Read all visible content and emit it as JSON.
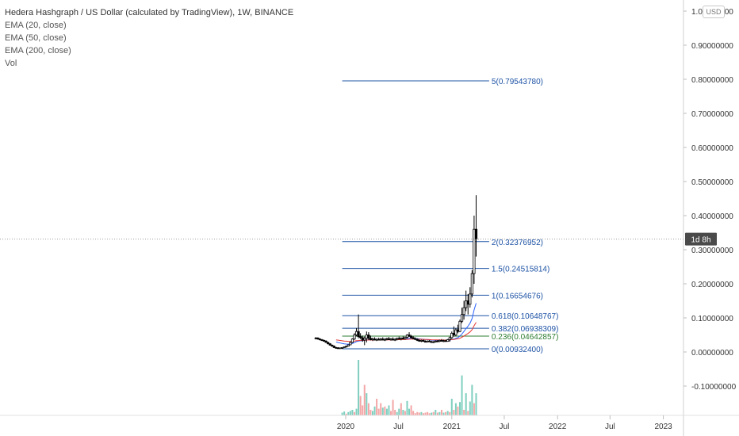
{
  "legend": {
    "title": "Hedera Hashgraph / US Dollar (calculated by TradingView), 1W, BINANCE",
    "indicators": [
      "EMA (20, close)",
      "EMA (50, close)",
      "EMA (200, close)",
      "Vol"
    ]
  },
  "currency_badge": "USD",
  "countdown_label": "1d 8h",
  "colors": {
    "fib_line": "#1e53a5",
    "fib_0236": "#2e7d32",
    "up_candle": "#000000",
    "volume_up": "#7fcfbf",
    "volume_down": "#f3a6a6",
    "axis_text": "#333333",
    "ema20": "#2962ff",
    "ema50": "#e53935",
    "ema200": "#26a69a"
  },
  "chart_data": {
    "type": "candlestick",
    "interval": "1W",
    "y_axis": {
      "ticks": [
        1.0,
        0.9,
        0.8,
        0.7,
        0.6,
        0.5,
        0.4,
        0.3,
        0.2,
        0.1,
        0.0,
        -0.1
      ],
      "tick_labels": [
        "1.00000000",
        "0.90000000",
        "0.80000000",
        "0.70000000",
        "0.60000000",
        "0.50000000",
        "0.40000000",
        "0.30000000",
        "0.20000000",
        "0.10000000",
        "0.00000000",
        "-0.10000000"
      ],
      "range": [
        -0.17,
        1.02
      ],
      "side": "right"
    },
    "x_axis": {
      "tick_labels": [
        "2020",
        "Jul",
        "2021",
        "Jul",
        "2022",
        "Jul",
        "2023"
      ],
      "tick_dates": [
        "2020-01-01",
        "2020-07-01",
        "2021-01-01",
        "2021-07-01",
        "2022-01-01",
        "2022-07-01",
        "2023-01-01"
      ],
      "range": [
        "2019-09-01",
        "2023-03-15"
      ]
    },
    "current_price": 0.331,
    "fib_extension": {
      "start_date": "2019-12-20",
      "end_date": "2021-05-10",
      "levels": [
        {
          "ratio": "5",
          "value": 0.7954378,
          "label": "5(0.79543780)"
        },
        {
          "ratio": "2",
          "value": 0.32376952,
          "label": "2(0.32376952)"
        },
        {
          "ratio": "1.5",
          "value": 0.24515814,
          "label": "1.5(0.24515814)"
        },
        {
          "ratio": "1",
          "value": 0.16654676,
          "label": "1(0.16654676)"
        },
        {
          "ratio": "0.618",
          "value": 0.10648767,
          "label": "0.618(0.10648767)"
        },
        {
          "ratio": "0.382",
          "value": 0.06938309,
          "label": "0.382(0.06938309)"
        },
        {
          "ratio": "0.236",
          "value": 0.04642857,
          "label": "0.236(0.04642857)"
        },
        {
          "ratio": "0",
          "value": 0.009324,
          "label": "0(0.00932400)"
        }
      ]
    },
    "candles": [
      [
        "2019-09-20",
        0.04,
        0.044,
        0.037,
        0.041
      ],
      [
        "2019-09-27",
        0.041,
        0.043,
        0.036,
        0.038
      ],
      [
        "2019-10-04",
        0.038,
        0.04,
        0.034,
        0.036
      ],
      [
        "2019-10-11",
        0.036,
        0.038,
        0.032,
        0.034
      ],
      [
        "2019-10-18",
        0.034,
        0.036,
        0.03,
        0.032
      ],
      [
        "2019-10-25",
        0.032,
        0.034,
        0.027,
        0.028
      ],
      [
        "2019-11-01",
        0.028,
        0.03,
        0.022,
        0.024
      ],
      [
        "2019-11-08",
        0.024,
        0.026,
        0.019,
        0.02
      ],
      [
        "2019-11-15",
        0.02,
        0.022,
        0.015,
        0.017
      ],
      [
        "2019-11-22",
        0.017,
        0.019,
        0.012,
        0.013
      ],
      [
        "2019-11-29",
        0.013,
        0.015,
        0.01,
        0.012
      ],
      [
        "2019-12-06",
        0.012,
        0.014,
        0.01,
        0.011
      ],
      [
        "2019-12-13",
        0.011,
        0.013,
        0.009,
        0.012
      ],
      [
        "2019-12-20",
        0.012,
        0.014,
        0.009,
        0.013
      ],
      [
        "2019-12-27",
        0.013,
        0.016,
        0.012,
        0.015
      ],
      [
        "2020-01-03",
        0.015,
        0.018,
        0.013,
        0.017
      ],
      [
        "2020-01-10",
        0.017,
        0.022,
        0.016,
        0.021
      ],
      [
        "2020-01-17",
        0.021,
        0.03,
        0.02,
        0.028
      ],
      [
        "2020-01-24",
        0.028,
        0.04,
        0.026,
        0.038
      ],
      [
        "2020-01-31",
        0.038,
        0.055,
        0.035,
        0.05
      ],
      [
        "2020-02-07",
        0.05,
        0.07,
        0.046,
        0.06
      ],
      [
        "2020-02-14",
        0.06,
        0.11,
        0.04,
        0.045
      ],
      [
        "2020-02-21",
        0.045,
        0.055,
        0.038,
        0.042
      ],
      [
        "2020-02-28",
        0.042,
        0.048,
        0.03,
        0.035
      ],
      [
        "2020-03-06",
        0.035,
        0.045,
        0.02,
        0.04
      ],
      [
        "2020-03-13",
        0.04,
        0.06,
        0.028,
        0.05
      ],
      [
        "2020-03-20",
        0.05,
        0.058,
        0.035,
        0.04
      ],
      [
        "2020-03-27",
        0.04,
        0.048,
        0.034,
        0.036
      ],
      [
        "2020-04-03",
        0.036,
        0.042,
        0.032,
        0.038
      ],
      [
        "2020-04-10",
        0.038,
        0.043,
        0.034,
        0.035
      ],
      [
        "2020-04-17",
        0.035,
        0.04,
        0.032,
        0.037
      ],
      [
        "2020-04-24",
        0.037,
        0.042,
        0.034,
        0.036
      ],
      [
        "2020-05-01",
        0.036,
        0.041,
        0.033,
        0.038
      ],
      [
        "2020-05-08",
        0.038,
        0.043,
        0.034,
        0.035
      ],
      [
        "2020-05-15",
        0.035,
        0.04,
        0.032,
        0.037
      ],
      [
        "2020-05-22",
        0.037,
        0.042,
        0.034,
        0.039
      ],
      [
        "2020-05-29",
        0.039,
        0.044,
        0.035,
        0.036
      ],
      [
        "2020-06-05",
        0.036,
        0.041,
        0.033,
        0.038
      ],
      [
        "2020-06-12",
        0.038,
        0.043,
        0.034,
        0.035
      ],
      [
        "2020-06-19",
        0.035,
        0.04,
        0.032,
        0.037
      ],
      [
        "2020-06-26",
        0.037,
        0.042,
        0.034,
        0.04
      ],
      [
        "2020-07-03",
        0.04,
        0.045,
        0.036,
        0.038
      ],
      [
        "2020-07-10",
        0.038,
        0.043,
        0.034,
        0.041
      ],
      [
        "2020-07-17",
        0.041,
        0.046,
        0.037,
        0.039
      ],
      [
        "2020-07-24",
        0.039,
        0.045,
        0.036,
        0.043
      ],
      [
        "2020-07-31",
        0.043,
        0.052,
        0.04,
        0.05
      ],
      [
        "2020-08-07",
        0.05,
        0.058,
        0.044,
        0.046
      ],
      [
        "2020-08-14",
        0.046,
        0.05,
        0.04,
        0.042
      ],
      [
        "2020-08-21",
        0.042,
        0.046,
        0.037,
        0.039
      ],
      [
        "2020-08-28",
        0.039,
        0.043,
        0.035,
        0.037
      ],
      [
        "2020-09-04",
        0.037,
        0.04,
        0.032,
        0.034
      ],
      [
        "2020-09-11",
        0.034,
        0.037,
        0.03,
        0.032
      ],
      [
        "2020-09-18",
        0.032,
        0.036,
        0.029,
        0.034
      ],
      [
        "2020-09-25",
        0.034,
        0.037,
        0.03,
        0.031
      ],
      [
        "2020-10-02",
        0.031,
        0.034,
        0.028,
        0.03
      ],
      [
        "2020-10-09",
        0.03,
        0.034,
        0.028,
        0.032
      ],
      [
        "2020-10-16",
        0.032,
        0.035,
        0.029,
        0.03
      ],
      [
        "2020-10-23",
        0.03,
        0.033,
        0.027,
        0.029
      ],
      [
        "2020-10-30",
        0.029,
        0.032,
        0.026,
        0.03
      ],
      [
        "2020-11-06",
        0.03,
        0.034,
        0.028,
        0.032
      ],
      [
        "2020-11-13",
        0.032,
        0.035,
        0.029,
        0.031
      ],
      [
        "2020-11-20",
        0.031,
        0.036,
        0.029,
        0.034
      ],
      [
        "2020-11-27",
        0.034,
        0.038,
        0.03,
        0.032
      ],
      [
        "2020-12-04",
        0.032,
        0.036,
        0.029,
        0.033
      ],
      [
        "2020-12-11",
        0.033,
        0.036,
        0.03,
        0.031
      ],
      [
        "2020-12-18",
        0.031,
        0.038,
        0.03,
        0.036
      ],
      [
        "2020-12-25",
        0.036,
        0.045,
        0.03,
        0.042
      ],
      [
        "2021-01-01",
        0.042,
        0.06,
        0.038,
        0.055
      ],
      [
        "2021-01-08",
        0.055,
        0.075,
        0.045,
        0.05
      ],
      [
        "2021-01-15",
        0.05,
        0.07,
        0.046,
        0.065
      ],
      [
        "2021-01-22",
        0.065,
        0.08,
        0.055,
        0.06
      ],
      [
        "2021-01-29",
        0.06,
        0.095,
        0.058,
        0.09
      ],
      [
        "2021-02-05",
        0.09,
        0.13,
        0.085,
        0.11
      ],
      [
        "2021-02-12",
        0.11,
        0.15,
        0.095,
        0.13
      ],
      [
        "2021-02-19",
        0.13,
        0.18,
        0.12,
        0.15
      ],
      [
        "2021-02-26",
        0.15,
        0.17,
        0.11,
        0.14
      ],
      [
        "2021-03-05",
        0.14,
        0.19,
        0.13,
        0.17
      ],
      [
        "2021-03-12",
        0.17,
        0.24,
        0.16,
        0.23
      ],
      [
        "2021-03-19",
        0.23,
        0.4,
        0.2,
        0.36
      ],
      [
        "2021-03-26",
        0.36,
        0.46,
        0.28,
        0.331
      ]
    ],
    "volume": [
      [
        "2019-12-20",
        0.05,
        "up"
      ],
      [
        "2019-12-27",
        0.07,
        "up"
      ],
      [
        "2020-01-03",
        0.03,
        "down"
      ],
      [
        "2020-01-10",
        0.06,
        "up"
      ],
      [
        "2020-01-17",
        0.08,
        "up"
      ],
      [
        "2020-01-24",
        0.1,
        "up"
      ],
      [
        "2020-01-31",
        0.06,
        "down"
      ],
      [
        "2020-02-07",
        0.12,
        "up"
      ],
      [
        "2020-02-14",
        1.0,
        "up"
      ],
      [
        "2020-02-21",
        0.35,
        "down"
      ],
      [
        "2020-02-28",
        0.18,
        "down"
      ],
      [
        "2020-03-06",
        0.55,
        "down"
      ],
      [
        "2020-03-13",
        0.4,
        "up"
      ],
      [
        "2020-03-20",
        0.22,
        "down"
      ],
      [
        "2020-03-27",
        0.1,
        "down"
      ],
      [
        "2020-04-03",
        0.08,
        "up"
      ],
      [
        "2020-04-10",
        0.16,
        "up"
      ],
      [
        "2020-04-17",
        0.3,
        "down"
      ],
      [
        "2020-04-24",
        0.12,
        "down"
      ],
      [
        "2020-05-01",
        0.22,
        "down"
      ],
      [
        "2020-05-08",
        0.14,
        "up"
      ],
      [
        "2020-05-15",
        0.16,
        "down"
      ],
      [
        "2020-05-22",
        0.12,
        "up"
      ],
      [
        "2020-05-29",
        0.18,
        "up"
      ],
      [
        "2020-06-05",
        0.08,
        "down"
      ],
      [
        "2020-06-12",
        0.28,
        "down"
      ],
      [
        "2020-06-19",
        0.1,
        "down"
      ],
      [
        "2020-06-26",
        0.06,
        "up"
      ],
      [
        "2020-07-03",
        0.12,
        "up"
      ],
      [
        "2020-07-10",
        0.22,
        "down"
      ],
      [
        "2020-07-17",
        0.1,
        "up"
      ],
      [
        "2020-07-24",
        0.08,
        "down"
      ],
      [
        "2020-07-31",
        0.26,
        "up"
      ],
      [
        "2020-08-07",
        0.12,
        "up"
      ],
      [
        "2020-08-14",
        0.18,
        "down"
      ],
      [
        "2020-08-21",
        0.08,
        "down"
      ],
      [
        "2020-08-28",
        0.04,
        "down"
      ],
      [
        "2020-09-04",
        0.06,
        "down"
      ],
      [
        "2020-09-11",
        0.05,
        "down"
      ],
      [
        "2020-09-18",
        0.06,
        "up"
      ],
      [
        "2020-09-25",
        0.04,
        "down"
      ],
      [
        "2020-10-02",
        0.05,
        "down"
      ],
      [
        "2020-10-09",
        0.06,
        "down"
      ],
      [
        "2020-10-16",
        0.04,
        "down"
      ],
      [
        "2020-10-23",
        0.05,
        "up"
      ],
      [
        "2020-10-30",
        0.06,
        "down"
      ],
      [
        "2020-11-06",
        0.1,
        "up"
      ],
      [
        "2020-11-13",
        0.05,
        "down"
      ],
      [
        "2020-11-20",
        0.06,
        "up"
      ],
      [
        "2020-11-27",
        0.1,
        "down"
      ],
      [
        "2020-12-04",
        0.05,
        "up"
      ],
      [
        "2020-12-11",
        0.06,
        "down"
      ],
      [
        "2020-12-18",
        0.08,
        "up"
      ],
      [
        "2020-12-25",
        0.06,
        "down"
      ],
      [
        "2021-01-01",
        0.3,
        "up"
      ],
      [
        "2021-01-08",
        0.1,
        "down"
      ],
      [
        "2021-01-15",
        0.22,
        "up"
      ],
      [
        "2021-01-22",
        0.16,
        "down"
      ],
      [
        "2021-01-29",
        0.24,
        "up"
      ],
      [
        "2021-02-05",
        0.72,
        "up"
      ],
      [
        "2021-02-12",
        0.1,
        "down"
      ],
      [
        "2021-02-19",
        0.4,
        "up"
      ],
      [
        "2021-02-26",
        0.08,
        "down"
      ],
      [
        "2021-03-05",
        0.25,
        "up"
      ],
      [
        "2021-03-12",
        0.55,
        "up"
      ],
      [
        "2021-03-19",
        0.22,
        "down"
      ],
      [
        "2021-03-26",
        0.4,
        "up"
      ]
    ]
  }
}
